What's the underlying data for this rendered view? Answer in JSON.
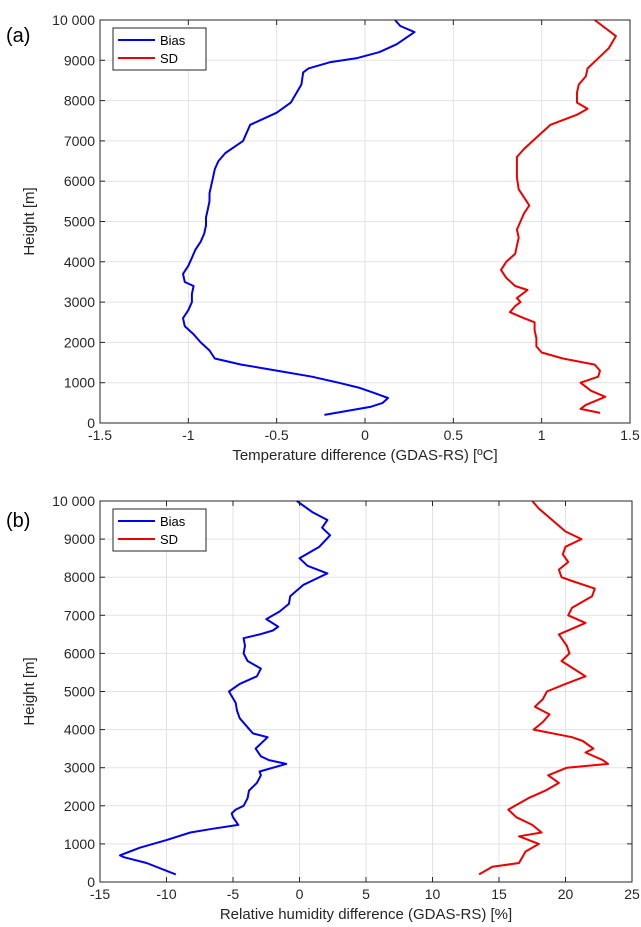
{
  "chart_data": [
    {
      "type": "line",
      "panel_label": "(a)",
      "xlabel": "Temperature difference (GDAS-RS) [ºC]",
      "ylabel": "Height [m]",
      "xlim": [
        -1.5,
        1.5
      ],
      "ylim": [
        0,
        10000
      ],
      "xticks": [
        -1.5,
        -1,
        -0.5,
        0,
        0.5,
        1,
        1.5
      ],
      "xtick_labels": [
        "-1.5",
        "-1",
        "-0.5",
        "0",
        "0.5",
        "1",
        "1.5"
      ],
      "yticks": [
        0,
        1000,
        2000,
        3000,
        4000,
        5000,
        6000,
        7000,
        8000,
        9000,
        10000
      ],
      "ytick_labels": [
        "0",
        "1000",
        "2000",
        "3000",
        "4000",
        "5000",
        "6000",
        "7000",
        "8000",
        "9000",
        "10 000"
      ],
      "grid": true,
      "legend": "top-left",
      "series": [
        {
          "name": "Bias",
          "color": "#0000ee",
          "points": [
            [
              -0.23,
              200
            ],
            [
              -0.1,
              300
            ],
            [
              0.03,
              400
            ],
            [
              0.1,
              500
            ],
            [
              0.13,
              620
            ],
            [
              0.05,
              750
            ],
            [
              -0.03,
              870
            ],
            [
              -0.15,
              1000
            ],
            [
              -0.3,
              1150
            ],
            [
              -0.5,
              1300
            ],
            [
              -0.7,
              1450
            ],
            [
              -0.85,
              1600
            ],
            [
              -0.88,
              1800
            ],
            [
              -0.93,
              2000
            ],
            [
              -0.95,
              2100
            ],
            [
              -0.97,
              2200
            ],
            [
              -1.02,
              2400
            ],
            [
              -1.03,
              2600
            ],
            [
              -1.0,
              2800
            ],
            [
              -0.98,
              3000
            ],
            [
              -0.98,
              3200
            ],
            [
              -0.97,
              3400
            ],
            [
              -1.02,
              3500
            ],
            [
              -1.03,
              3700
            ],
            [
              -1.0,
              3900
            ],
            [
              -0.98,
              4100
            ],
            [
              -0.96,
              4300
            ],
            [
              -0.93,
              4500
            ],
            [
              -0.91,
              4700
            ],
            [
              -0.9,
              4900
            ],
            [
              -0.9,
              5100
            ],
            [
              -0.89,
              5300
            ],
            [
              -0.88,
              5500
            ],
            [
              -0.88,
              5700
            ],
            [
              -0.87,
              5900
            ],
            [
              -0.86,
              6100
            ],
            [
              -0.85,
              6300
            ],
            [
              -0.83,
              6500
            ],
            [
              -0.79,
              6700
            ],
            [
              -0.74,
              6850
            ],
            [
              -0.69,
              7000
            ],
            [
              -0.67,
              7200
            ],
            [
              -0.65,
              7400
            ],
            [
              -0.6,
              7500
            ],
            [
              -0.5,
              7700
            ],
            [
              -0.42,
              7950
            ],
            [
              -0.4,
              8100
            ],
            [
              -0.36,
              8400
            ],
            [
              -0.35,
              8700
            ],
            [
              -0.32,
              8800
            ],
            [
              -0.2,
              8950
            ],
            [
              -0.05,
              9050
            ],
            [
              0.08,
              9200
            ],
            [
              0.18,
              9400
            ],
            [
              0.28,
              9700
            ],
            [
              0.2,
              9850
            ],
            [
              0.17,
              10000
            ]
          ]
        },
        {
          "name": "SD",
          "color": "#ee0000",
          "points": [
            [
              1.33,
              250
            ],
            [
              1.22,
              350
            ],
            [
              1.25,
              450
            ],
            [
              1.36,
              650
            ],
            [
              1.28,
              800
            ],
            [
              1.22,
              1000
            ],
            [
              1.32,
              1150
            ],
            [
              1.33,
              1300
            ],
            [
              1.3,
              1450
            ],
            [
              1.12,
              1600
            ],
            [
              1.0,
              1750
            ],
            [
              0.97,
              1900
            ],
            [
              0.97,
              2100
            ],
            [
              0.96,
              2300
            ],
            [
              0.96,
              2500
            ],
            [
              0.9,
              2600
            ],
            [
              0.82,
              2750
            ],
            [
              0.85,
              2900
            ],
            [
              0.88,
              3000
            ],
            [
              0.86,
              3100
            ],
            [
              0.92,
              3300
            ],
            [
              0.85,
              3400
            ],
            [
              0.8,
              3600
            ],
            [
              0.77,
              3800
            ],
            [
              0.8,
              4000
            ],
            [
              0.85,
              4200
            ],
            [
              0.86,
              4400
            ],
            [
              0.87,
              4600
            ],
            [
              0.86,
              4800
            ],
            [
              0.88,
              5000
            ],
            [
              0.9,
              5200
            ],
            [
              0.93,
              5400
            ],
            [
              0.9,
              5600
            ],
            [
              0.87,
              5800
            ],
            [
              0.86,
              6100
            ],
            [
              0.86,
              6400
            ],
            [
              0.86,
              6600
            ],
            [
              0.9,
              6800
            ],
            [
              0.95,
              7000
            ],
            [
              1.0,
              7200
            ],
            [
              1.05,
              7400
            ],
            [
              1.2,
              7650
            ],
            [
              1.26,
              7800
            ],
            [
              1.2,
              7950
            ],
            [
              1.2,
              8200
            ],
            [
              1.21,
              8400
            ],
            [
              1.25,
              8600
            ],
            [
              1.26,
              8800
            ],
            [
              1.32,
              9050
            ],
            [
              1.38,
              9300
            ],
            [
              1.42,
              9600
            ],
            [
              1.33,
              9900
            ],
            [
              1.3,
              10000
            ]
          ]
        }
      ]
    },
    {
      "type": "line",
      "panel_label": "(b)",
      "xlabel": "Relative humidity difference (GDAS-RS) [%]",
      "ylabel": "Height [m]",
      "xlim": [
        -15,
        25
      ],
      "ylim": [
        0,
        10000
      ],
      "xticks": [
        -15,
        -10,
        -5,
        0,
        5,
        10,
        15,
        20,
        25
      ],
      "xtick_labels": [
        "-15",
        "-10",
        "-5",
        "0",
        "5",
        "10",
        "15",
        "20",
        "25"
      ],
      "yticks": [
        0,
        1000,
        2000,
        3000,
        4000,
        5000,
        6000,
        7000,
        8000,
        9000,
        10000
      ],
      "ytick_labels": [
        "0",
        "1000",
        "2000",
        "3000",
        "4000",
        "5000",
        "6000",
        "7000",
        "8000",
        "9000",
        "10 000"
      ],
      "grid": true,
      "legend": "top-left",
      "series": [
        {
          "name": "Bias",
          "color": "#0000ee",
          "points": [
            [
              -9.3,
              200
            ],
            [
              -11.5,
              500
            ],
            [
              -13.2,
              650
            ],
            [
              -13.5,
              700
            ],
            [
              -12.0,
              900
            ],
            [
              -10.0,
              1100
            ],
            [
              -8.2,
              1300
            ],
            [
              -6.5,
              1400
            ],
            [
              -4.6,
              1500
            ],
            [
              -5.0,
              1700
            ],
            [
              -5.1,
              1800
            ],
            [
              -4.8,
              1900
            ],
            [
              -4.2,
              2000
            ],
            [
              -3.9,
              2200
            ],
            [
              -3.8,
              2400
            ],
            [
              -3.2,
              2600
            ],
            [
              -2.9,
              2800
            ],
            [
              -3.0,
              2900
            ],
            [
              -1.0,
              3100
            ],
            [
              -2.3,
              3200
            ],
            [
              -2.9,
              3300
            ],
            [
              -3.3,
              3500
            ],
            [
              -2.4,
              3800
            ],
            [
              -3.5,
              3900
            ],
            [
              -4.0,
              4100
            ],
            [
              -4.5,
              4300
            ],
            [
              -4.7,
              4500
            ],
            [
              -4.8,
              4700
            ],
            [
              -5.3,
              5000
            ],
            [
              -4.5,
              5200
            ],
            [
              -3.2,
              5400
            ],
            [
              -2.9,
              5600
            ],
            [
              -3.9,
              5800
            ],
            [
              -4.2,
              6000
            ],
            [
              -4.1,
              6200
            ],
            [
              -4.2,
              6400
            ],
            [
              -3.0,
              6500
            ],
            [
              -2.0,
              6600
            ],
            [
              -1.6,
              6700
            ],
            [
              -2.5,
              6900
            ],
            [
              -1.5,
              7100
            ],
            [
              -0.8,
              7300
            ],
            [
              -0.7,
              7500
            ],
            [
              0.3,
              7800
            ],
            [
              2.1,
              8100
            ],
            [
              0.6,
              8300
            ],
            [
              0.0,
              8500
            ],
            [
              1.5,
              8800
            ],
            [
              2.3,
              9100
            ],
            [
              1.7,
              9300
            ],
            [
              2.1,
              9500
            ],
            [
              1.0,
              9700
            ],
            [
              -0.2,
              10000
            ]
          ]
        },
        {
          "name": "SD",
          "color": "#ee0000",
          "points": [
            [
              13.5,
              200
            ],
            [
              14.5,
              400
            ],
            [
              16.5,
              500
            ],
            [
              17.0,
              800
            ],
            [
              18.0,
              1000
            ],
            [
              16.5,
              1200
            ],
            [
              18.2,
              1300
            ],
            [
              17.5,
              1500
            ],
            [
              16.3,
              1700
            ],
            [
              15.7,
              1900
            ],
            [
              16.2,
              2000
            ],
            [
              17.2,
              2200
            ],
            [
              18.5,
              2400
            ],
            [
              19.5,
              2600
            ],
            [
              18.7,
              2800
            ],
            [
              20.1,
              3000
            ],
            [
              23.2,
              3100
            ],
            [
              22.8,
              3200
            ],
            [
              21.5,
              3400
            ],
            [
              22.1,
              3500
            ],
            [
              21.3,
              3700
            ],
            [
              20.5,
              3800
            ],
            [
              17.6,
              4000
            ],
            [
              18.3,
              4200
            ],
            [
              18.8,
              4400
            ],
            [
              17.7,
              4600
            ],
            [
              18.3,
              4800
            ],
            [
              18.6,
              5000
            ],
            [
              20.0,
              5200
            ],
            [
              21.5,
              5400
            ],
            [
              20.6,
              5600
            ],
            [
              19.7,
              5800
            ],
            [
              20.3,
              6000
            ],
            [
              20.1,
              6200
            ],
            [
              19.5,
              6500
            ],
            [
              21.5,
              6800
            ],
            [
              20.2,
              7000
            ],
            [
              20.5,
              7200
            ],
            [
              22.0,
              7500
            ],
            [
              22.2,
              7700
            ],
            [
              20.5,
              7900
            ],
            [
              19.7,
              8000
            ],
            [
              19.5,
              8200
            ],
            [
              20.2,
              8400
            ],
            [
              19.8,
              8600
            ],
            [
              20.0,
              8800
            ],
            [
              21.2,
              9000
            ],
            [
              20.0,
              9200
            ],
            [
              19.0,
              9500
            ],
            [
              18.0,
              9800
            ],
            [
              17.5,
              10000
            ]
          ]
        }
      ]
    }
  ]
}
